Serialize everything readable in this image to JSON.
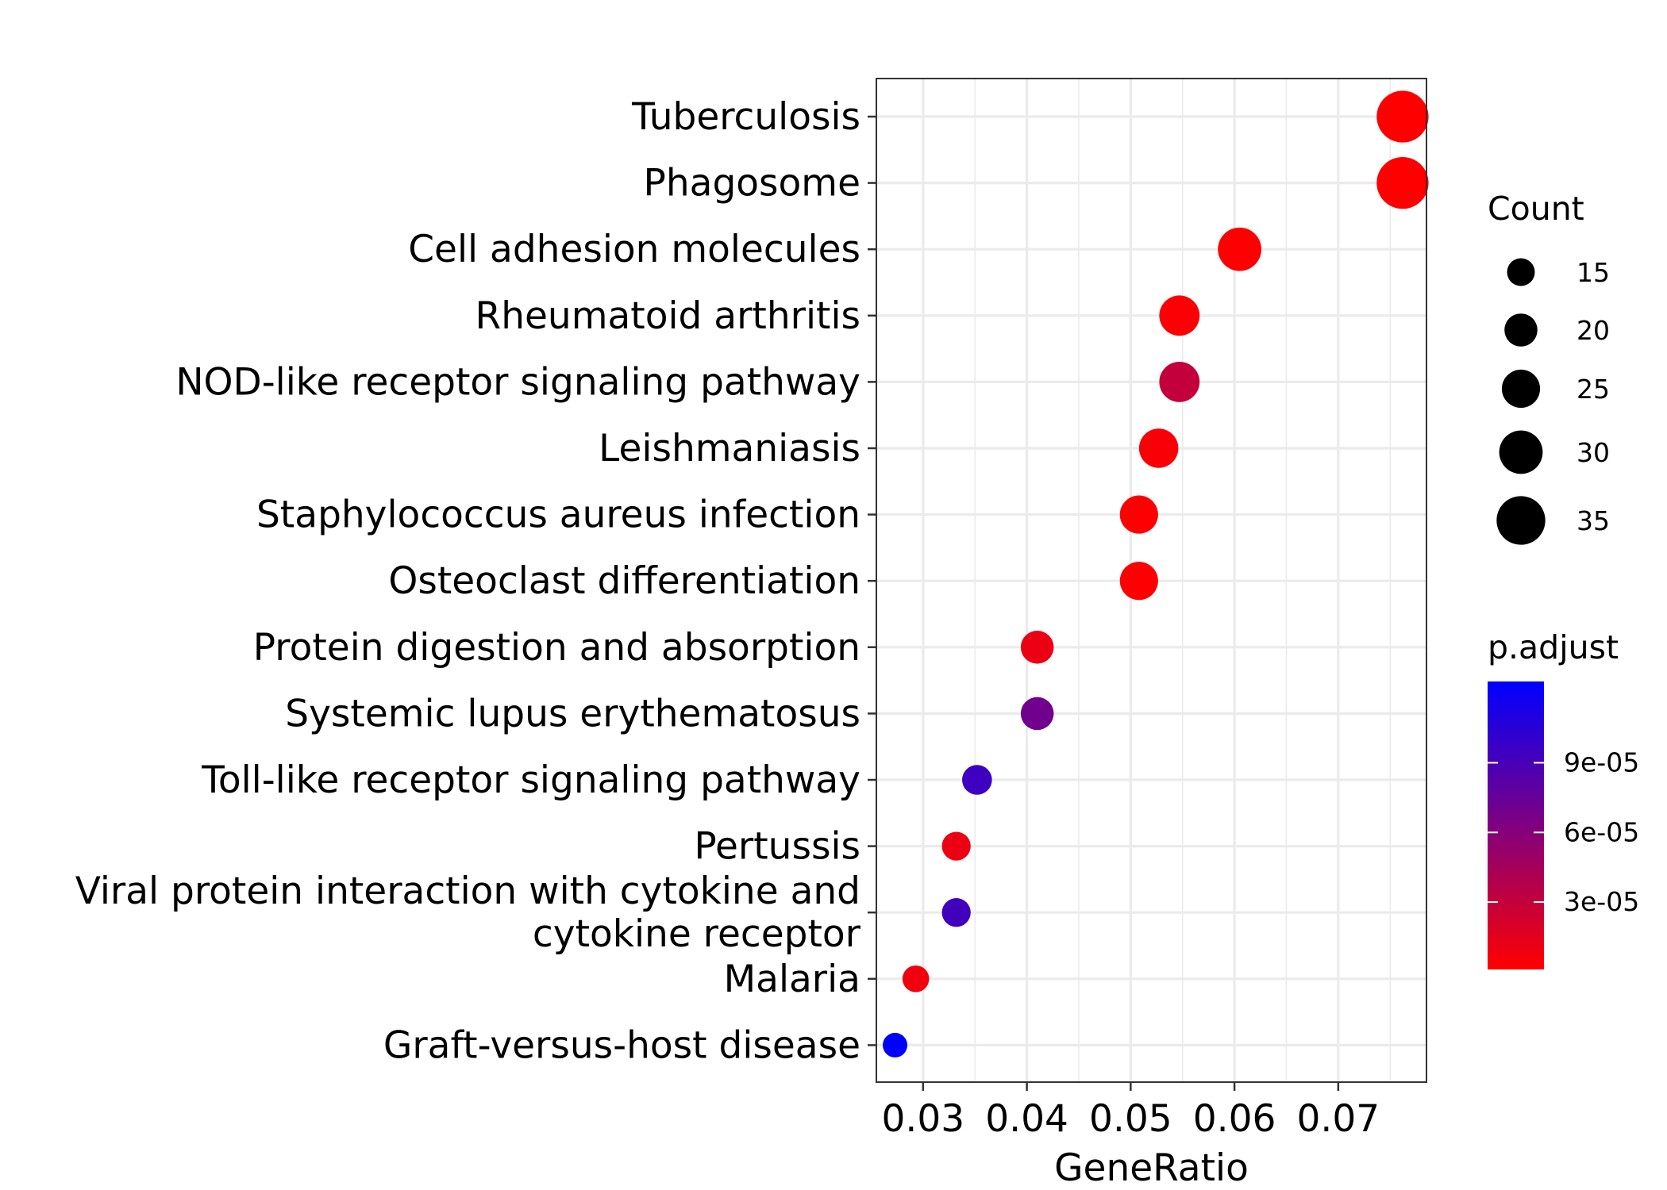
{
  "chart_data": {
    "type": "scatter",
    "xlabel": "GeneRatio",
    "ylabel": "",
    "xlim": [
      0.0255,
      0.0785
    ],
    "x_ticks": [
      0.03,
      0.04,
      0.05,
      0.06,
      0.07
    ],
    "x_tick_labels": [
      "0.03",
      "0.04",
      "0.05",
      "0.06",
      "0.07"
    ],
    "grid": true,
    "categories": [
      [
        "Tuberculosis"
      ],
      [
        "Phagosome"
      ],
      [
        "Cell adhesion molecules"
      ],
      [
        "Rheumatoid arthritis"
      ],
      [
        "NOD-like receptor signaling pathway"
      ],
      [
        "Leishmaniasis"
      ],
      [
        "Staphylococcus aureus infection"
      ],
      [
        "Osteoclast differentiation"
      ],
      [
        "Protein digestion and absorption"
      ],
      [
        "Systemic lupus erythematosus"
      ],
      [
        "Toll-like receptor signaling pathway"
      ],
      [
        "Pertussis"
      ],
      [
        "Viral protein interaction with cytokine and",
        "cytokine receptor"
      ],
      [
        "Malaria"
      ],
      [
        "Graft-versus-host disease"
      ]
    ],
    "points": [
      {
        "gene_ratio": 0.0762,
        "count": 38,
        "p_adjust": 1e-06
      },
      {
        "gene_ratio": 0.0762,
        "count": 38,
        "p_adjust": 1e-06
      },
      {
        "gene_ratio": 0.0605,
        "count": 30,
        "p_adjust": 2e-06
      },
      {
        "gene_ratio": 0.0547,
        "count": 27,
        "p_adjust": 3e-06
      },
      {
        "gene_ratio": 0.0547,
        "count": 27,
        "p_adjust": 3e-05
      },
      {
        "gene_ratio": 0.0527,
        "count": 26,
        "p_adjust": 4e-06
      },
      {
        "gene_ratio": 0.0508,
        "count": 25,
        "p_adjust": 2e-06
      },
      {
        "gene_ratio": 0.0508,
        "count": 25,
        "p_adjust": 2e-06
      },
      {
        "gene_ratio": 0.041,
        "count": 20,
        "p_adjust": 1e-05
      },
      {
        "gene_ratio": 0.041,
        "count": 20,
        "p_adjust": 7e-05
      },
      {
        "gene_ratio": 0.0352,
        "count": 17,
        "p_adjust": 9.5e-05
      },
      {
        "gene_ratio": 0.0332,
        "count": 16,
        "p_adjust": 1e-05
      },
      {
        "gene_ratio": 0.0332,
        "count": 16,
        "p_adjust": 9.3e-05
      },
      {
        "gene_ratio": 0.0293,
        "count": 14,
        "p_adjust": 8e-06
      },
      {
        "gene_ratio": 0.0273,
        "count": 12,
        "p_adjust": 0.000125
      }
    ],
    "legend_size": {
      "title": "Count",
      "values": [
        15,
        20,
        25,
        30,
        35
      ],
      "labels": [
        "15",
        "20",
        "25",
        "30",
        "35"
      ],
      "placement": "right"
    },
    "legend_color": {
      "title": "p.adjust",
      "min": 1e-06,
      "max": 0.000125,
      "low_color": "#FF0000",
      "high_color": "#0000FF",
      "ticks": [
        3e-05,
        6e-05,
        9e-05
      ],
      "tick_labels": [
        "3e-05",
        "6e-05",
        "9e-05"
      ],
      "placement": "right"
    },
    "colors": {
      "panel_border": "#333333",
      "grid": "#EBEBEB",
      "tick": "#333333"
    }
  }
}
